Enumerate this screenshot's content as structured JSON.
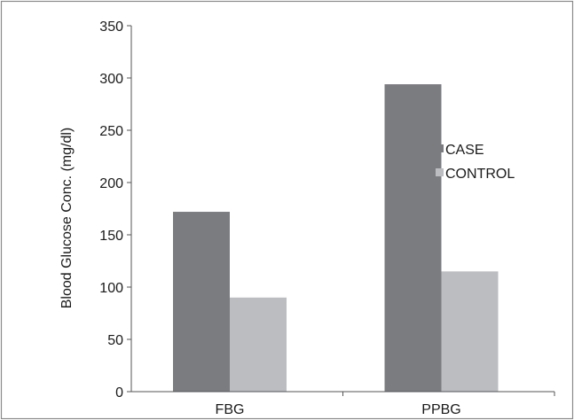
{
  "chart_data": {
    "type": "bar",
    "title": "",
    "xlabel": "",
    "ylabel": "Blood Glucose Conc. (mg/dl)",
    "categories": [
      "FBG",
      "PPBG"
    ],
    "series": [
      {
        "name": "CASE",
        "values": [
          172,
          294
        ],
        "color": "#7b7c80"
      },
      {
        "name": "CONTROL",
        "values": [
          90,
          115
        ],
        "color": "#bcbdc1"
      }
    ],
    "ylim": [
      0,
      350
    ],
    "yticks": [
      "0",
      "50",
      "100",
      "150",
      "200",
      "250",
      "300",
      "350"
    ],
    "grid": false,
    "legend": "right"
  },
  "colors": {
    "frame": "#8a8a8a",
    "axis": "#555555",
    "text": "#1a1a1a"
  }
}
